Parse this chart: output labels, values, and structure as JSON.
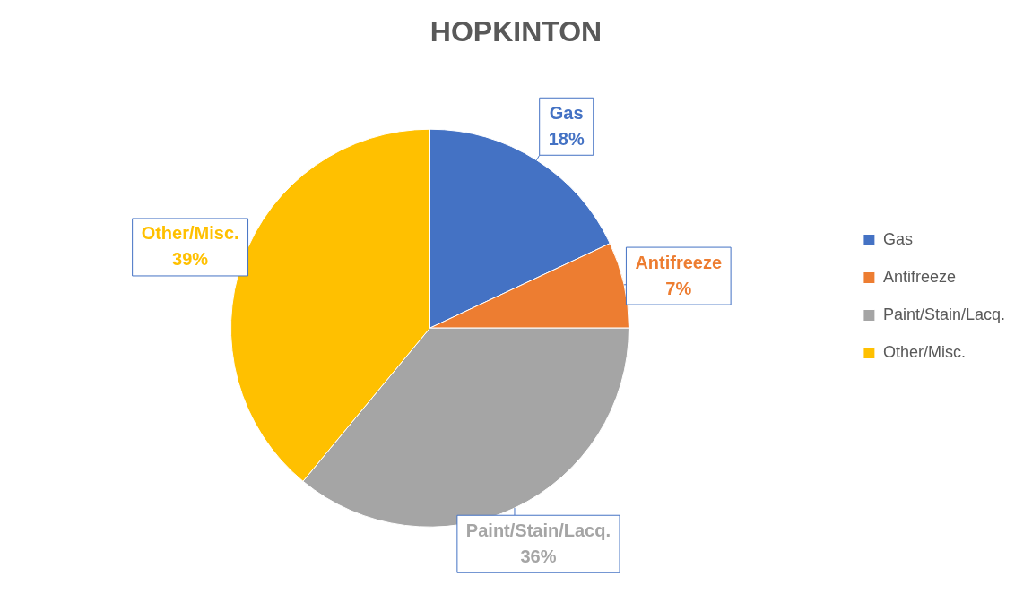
{
  "chart_data": {
    "type": "pie",
    "title": "HOPKINTON",
    "categories": [
      "Gas",
      "Antifreeze",
      "Paint/Stain/Lacq.",
      "Other/Misc."
    ],
    "values": [
      18,
      7,
      36,
      39
    ],
    "colors": [
      "#4472c4",
      "#ed7d31",
      "#a5a5a5",
      "#ffc000"
    ],
    "value_labels": [
      "18%",
      "7%",
      "36%",
      "39%"
    ],
    "legend": "right"
  }
}
